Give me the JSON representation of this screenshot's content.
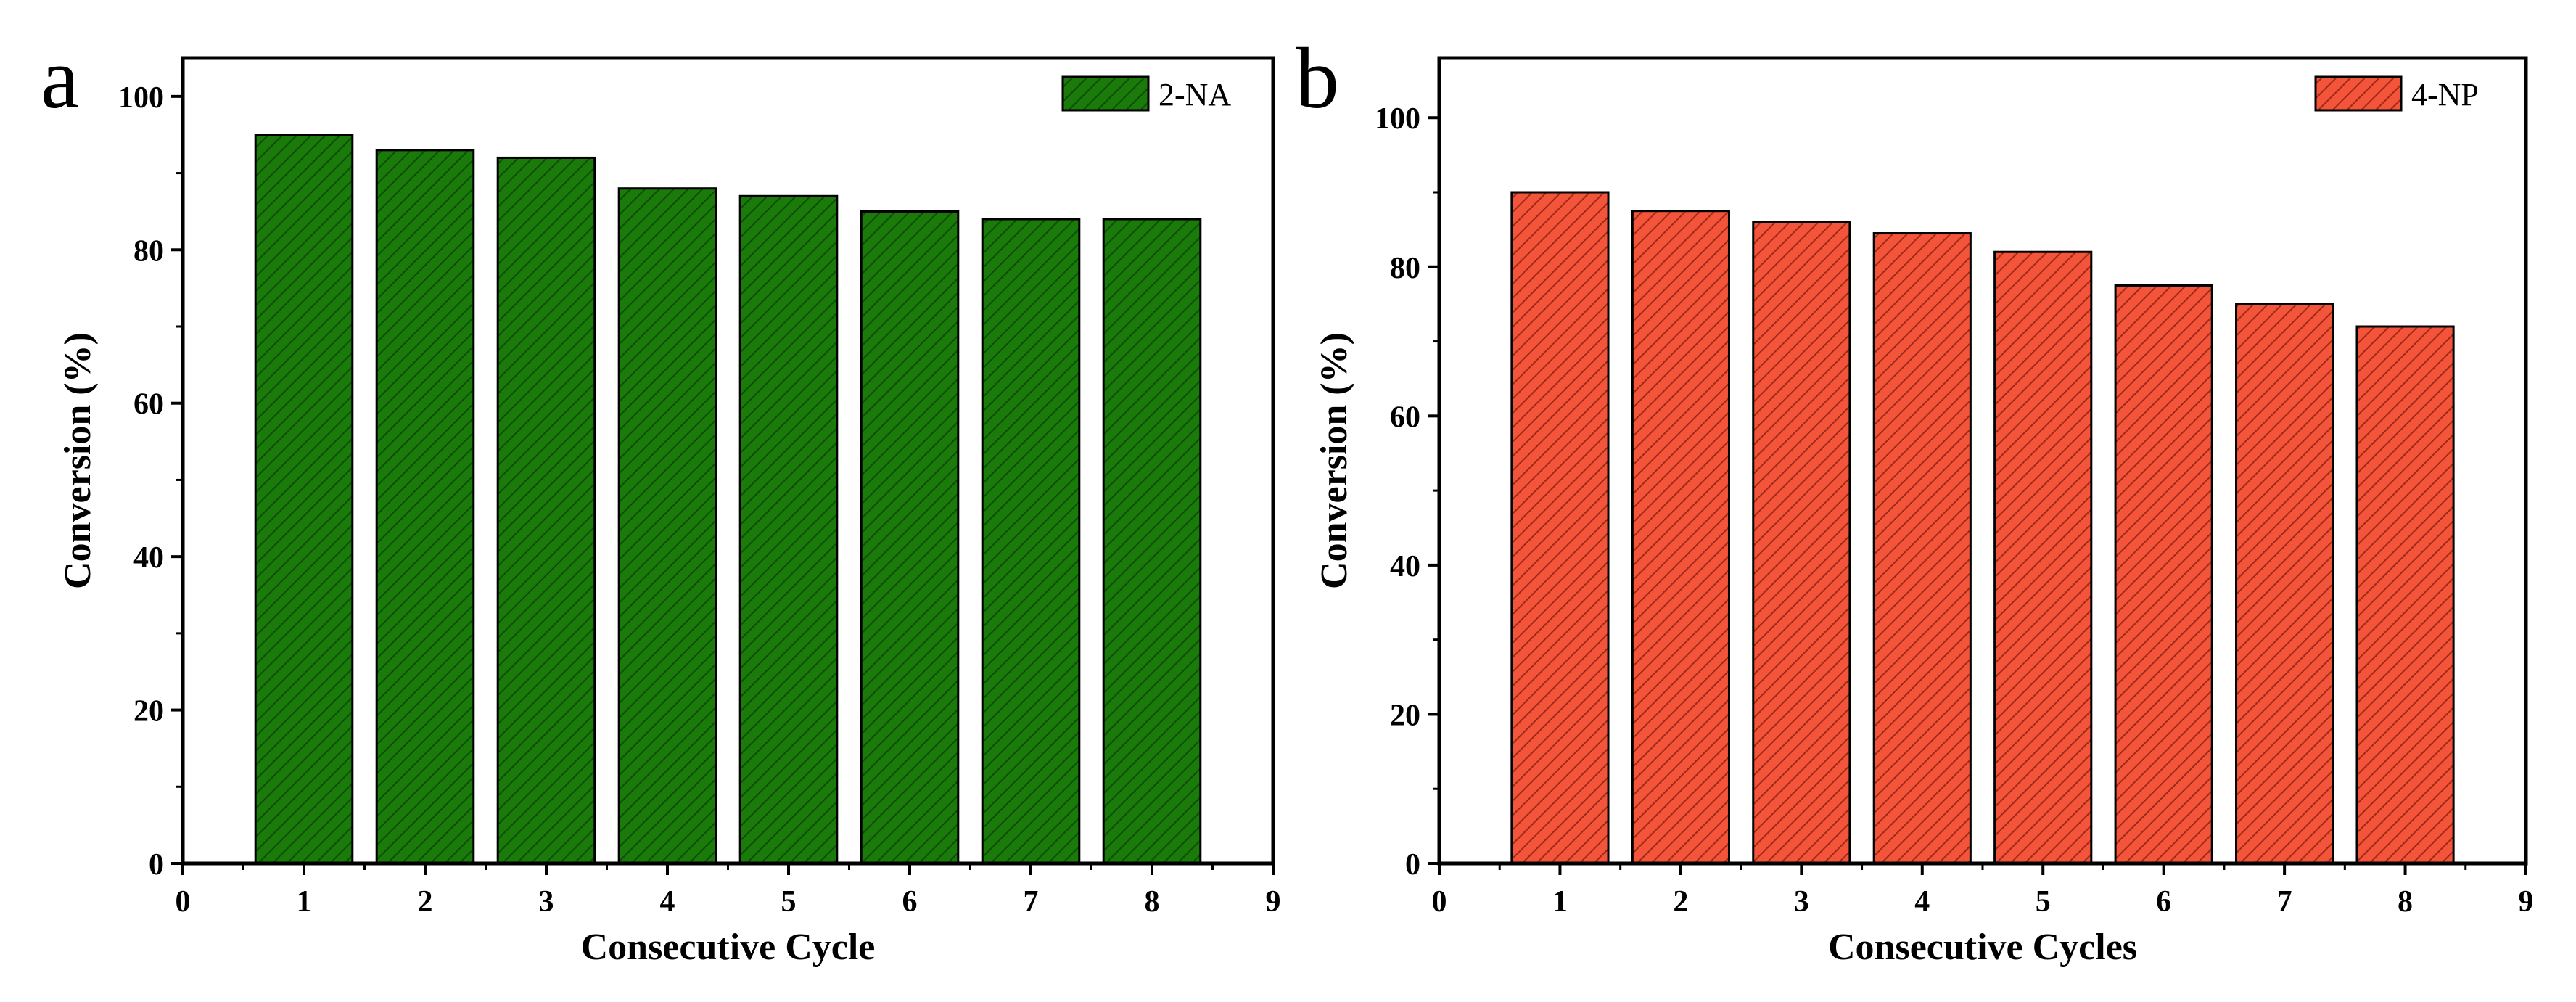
{
  "chart_data": [
    {
      "type": "bar",
      "panel_label": "a",
      "title": "",
      "xlabel": "Consecutive Cycle",
      "ylabel": "Conversion (%)",
      "xlim": [
        0,
        9
      ],
      "ylim": [
        0,
        105
      ],
      "xticks": [
        0,
        1,
        2,
        3,
        4,
        5,
        6,
        7,
        8,
        9
      ],
      "yticks": [
        0,
        20,
        40,
        60,
        80,
        100
      ],
      "legend_position": "top-right",
      "series": [
        {
          "name": "2-NA",
          "color": "#1a7a0a",
          "hatch_color": "#0e4d06",
          "x": [
            1,
            2,
            3,
            4,
            5,
            6,
            7,
            8
          ],
          "values": [
            95,
            93,
            92,
            88,
            87,
            85,
            84,
            84
          ]
        }
      ]
    },
    {
      "type": "bar",
      "panel_label": "b",
      "title": "",
      "xlabel": "Consecutive Cycles",
      "ylabel": "Conversion (%)",
      "xlim": [
        0,
        9
      ],
      "ylim": [
        0,
        108
      ],
      "xticks": [
        0,
        1,
        2,
        3,
        4,
        5,
        6,
        7,
        8,
        9
      ],
      "yticks": [
        0,
        20,
        40,
        60,
        80,
        100
      ],
      "legend_position": "top-right",
      "series": [
        {
          "name": "4-NP",
          "color": "#f4553a",
          "hatch_color": "#9c2a18",
          "x": [
            1,
            2,
            3,
            4,
            5,
            6,
            7,
            8
          ],
          "values": [
            90,
            87.5,
            86,
            84.5,
            82,
            77.5,
            75,
            72
          ]
        }
      ]
    }
  ]
}
